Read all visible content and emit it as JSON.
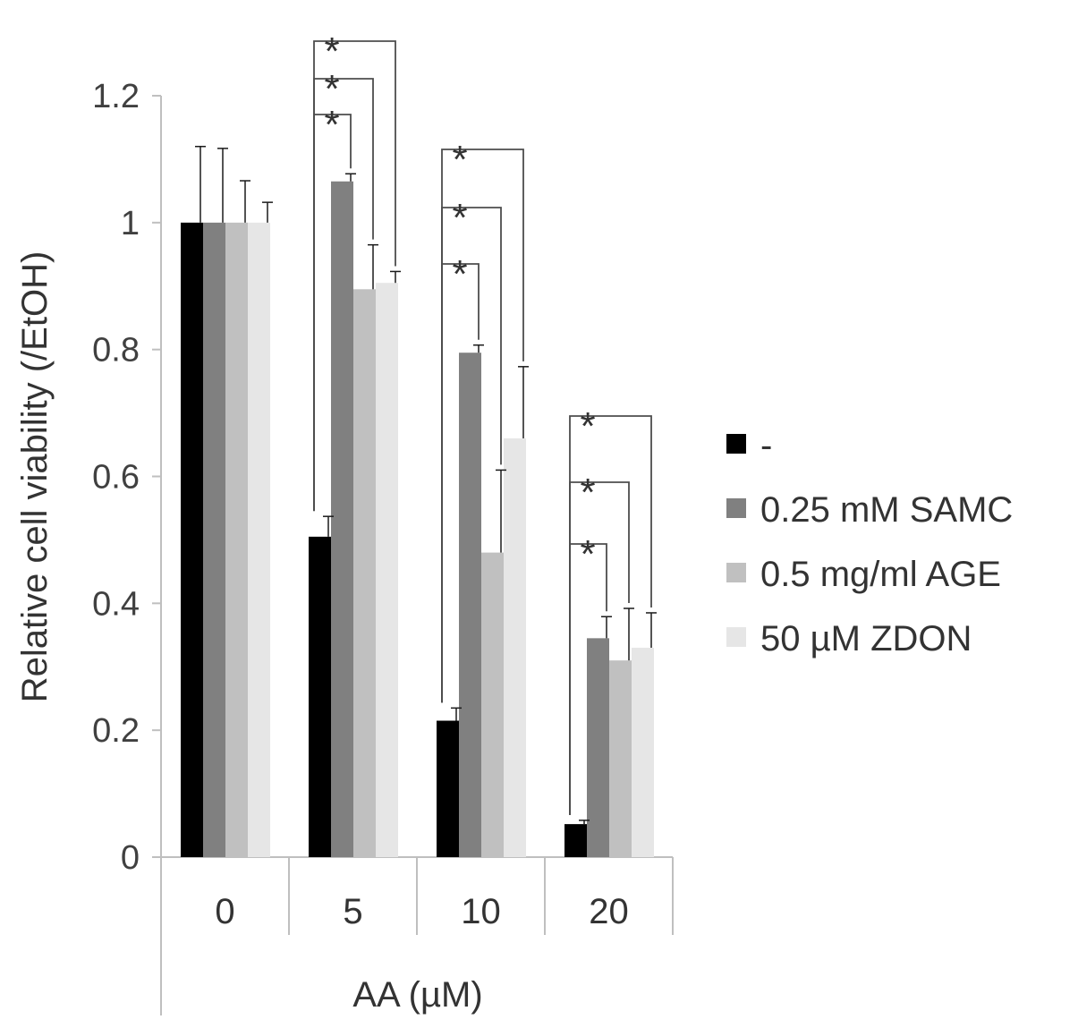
{
  "chart_data": {
    "type": "bar",
    "title": "",
    "xlabel": "AA (µM)",
    "ylabel": "Relative cell viability (/EtOH)",
    "ylim": [
      0,
      1.2
    ],
    "y_ticks": [
      "0",
      "0.2",
      "0.4",
      "0.6",
      "0.8",
      "1",
      "1.2"
    ],
    "categories": [
      "0",
      "5",
      "10",
      "20"
    ],
    "series": [
      {
        "name": "-",
        "color": "#000000",
        "values": [
          1.0,
          0.505,
          0.215,
          0.052
        ],
        "errors": [
          0.12,
          0.032,
          0.02,
          0.006
        ]
      },
      {
        "name": "0.25 mM SAMC",
        "color": "#808080",
        "values": [
          1.0,
          1.065,
          0.795,
          0.345
        ],
        "errors": [
          0.117,
          0.012,
          0.012,
          0.034
        ]
      },
      {
        "name": "0.5 mg/ml AGE",
        "color": "#c0c0c0",
        "values": [
          1.0,
          0.895,
          0.48,
          0.31
        ],
        "errors": [
          0.066,
          0.07,
          0.13,
          0.082
        ]
      },
      {
        "name": "50 µM ZDON",
        "color": "#e6e6e6",
        "values": [
          1.0,
          0.905,
          0.66,
          0.33
        ],
        "errors": [
          0.032,
          0.018,
          0.113,
          0.055
        ]
      }
    ],
    "significance": [
      {
        "category": "5",
        "compare": "-",
        "with": "0.25 mM SAMC",
        "label": "*"
      },
      {
        "category": "5",
        "compare": "-",
        "with": "0.5 mg/ml AGE",
        "label": "*"
      },
      {
        "category": "5",
        "compare": "-",
        "with": "50 µM ZDON",
        "label": "*"
      },
      {
        "category": "10",
        "compare": "-",
        "with": "0.25 mM SAMC",
        "label": "*"
      },
      {
        "category": "10",
        "compare": "-",
        "with": "0.5 mg/ml AGE",
        "label": "*"
      },
      {
        "category": "10",
        "compare": "-",
        "with": "50 µM ZDON",
        "label": "*"
      },
      {
        "category": "20",
        "compare": "-",
        "with": "0.25 mM SAMC",
        "label": "*"
      },
      {
        "category": "20",
        "compare": "-",
        "with": "0.5 mg/ml AGE",
        "label": "*"
      },
      {
        "category": "20",
        "compare": "-",
        "with": "50 µM ZDON",
        "label": "*"
      }
    ],
    "legend_position": "right",
    "grid": false
  }
}
